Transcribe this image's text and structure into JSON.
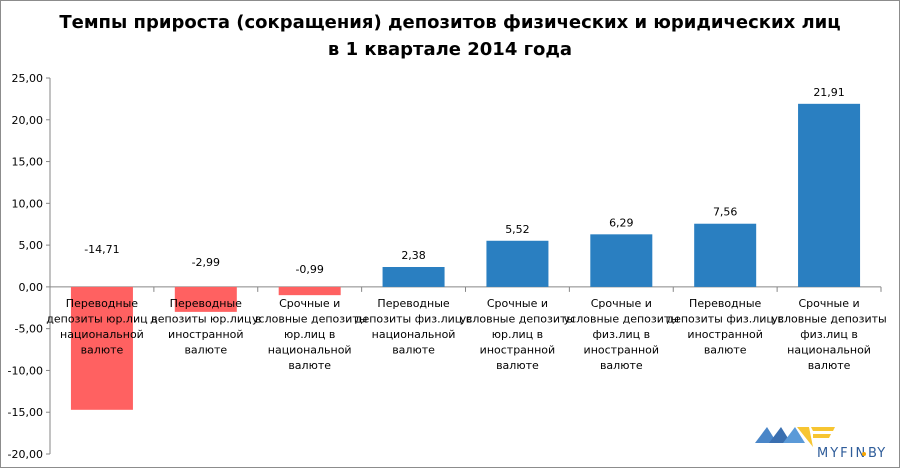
{
  "chart_data": {
    "type": "bar",
    "title_lines": [
      "Темпы прироста (сокращения) депозитов физических и юридических лиц",
      "в 1 квартале 2014 года"
    ],
    "categories": [
      [
        "Переводные",
        "депозиты юр.лиц в",
        "национальной",
        "валюте"
      ],
      [
        "Переводные",
        "депозиты юр.лиц в",
        "иностранной",
        "валюте"
      ],
      [
        "Срочные и",
        "условные депозиты",
        "юр.лиц в",
        "национальной",
        "валюте"
      ],
      [
        "Переводные",
        "депозиты физ.лиц в",
        "национальной",
        "валюте"
      ],
      [
        "Срочные и",
        "условные депозиты",
        "юр.лиц в",
        "иностранной",
        "валюте"
      ],
      [
        "Срочные и",
        "условные депозиты",
        "физ.лиц в",
        "иностранной",
        "валюте"
      ],
      [
        "Переводные",
        "депозиты физ.лиц в",
        "иностранной",
        "валюте"
      ],
      [
        "Срочные и",
        "условные депозиты",
        "физ.лиц в",
        "национальной",
        "валюте"
      ]
    ],
    "values": [
      -14.71,
      -2.99,
      -0.99,
      2.38,
      5.52,
      6.29,
      7.56,
      21.91
    ],
    "data_labels": [
      "-14,71",
      "-2,99",
      "-0,99",
      "2,38",
      "5,52",
      "6,29",
      "7,56",
      "21,91"
    ],
    "ylim": [
      -20,
      25
    ],
    "yticks": [
      -20,
      -15,
      -10,
      -5,
      0,
      5,
      10,
      15,
      20,
      25
    ],
    "ytick_labels": [
      "-20,00",
      "-15,00",
      "-10,00",
      "-5,00",
      "0,00",
      "5,00",
      "10,00",
      "15,00",
      "20,00",
      "25,00"
    ],
    "xlabel": "",
    "ylabel": "",
    "grid": false,
    "colors": {
      "negative": "#ff6161",
      "positive": "#2a7fc1",
      "axis": "#868686"
    }
  },
  "logo": {
    "text": "MYFIN.BY"
  }
}
